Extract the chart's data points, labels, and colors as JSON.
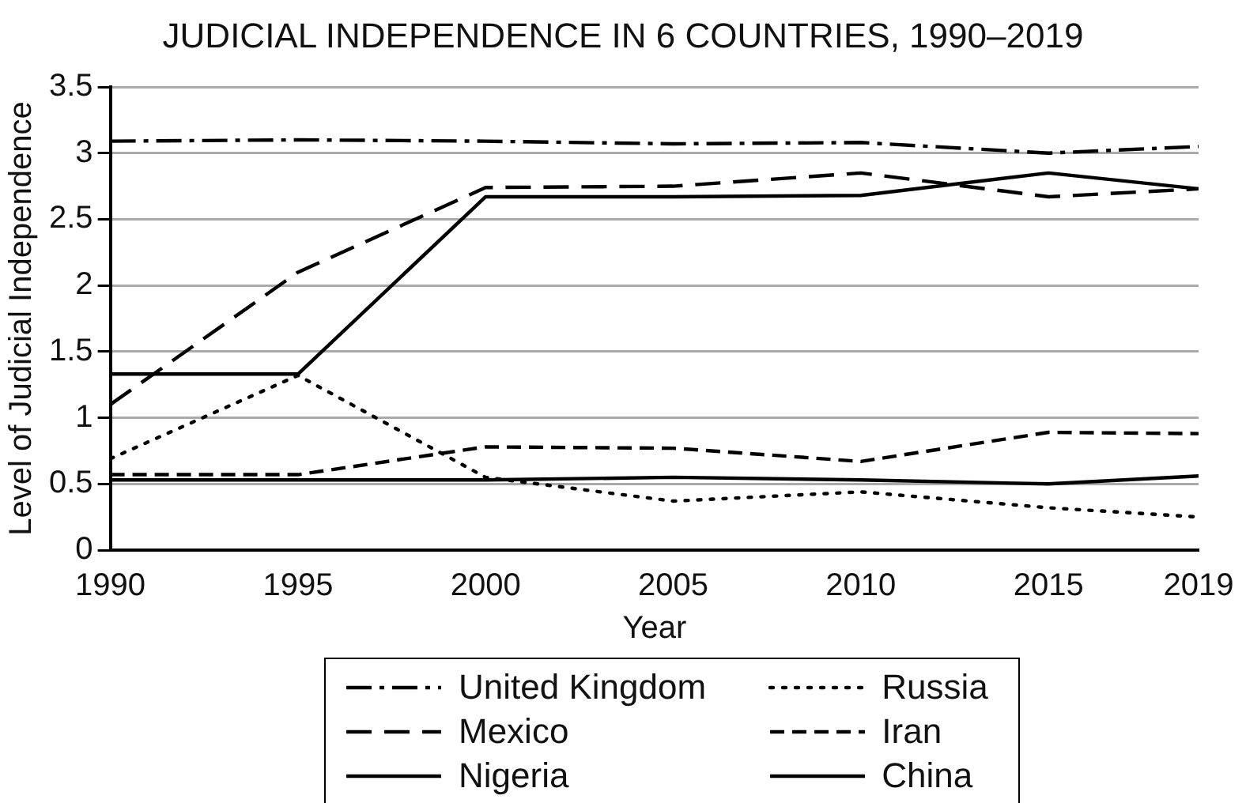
{
  "chart_data": {
    "type": "line",
    "title": "JUDICIAL INDEPENDENCE IN 6 COUNTRIES, 1990–2019",
    "xlabel": "Year",
    "ylabel": "Level of Judicial Independence",
    "x": [
      1990,
      1995,
      2000,
      2005,
      2010,
      2015,
      2019
    ],
    "xlim": [
      1990,
      2019
    ],
    "xticks": [
      1990,
      1995,
      2000,
      2005,
      2010,
      2015,
      2019
    ],
    "ylim": [
      0,
      3.5
    ],
    "yticks": [
      0,
      0.5,
      1,
      1.5,
      2,
      2.5,
      3,
      3.5
    ],
    "grid": "y",
    "legend": "bottom",
    "marker": "none",
    "series": [
      {
        "name": "United Kingdom",
        "color": "#000000",
        "line_style": "dashdot",
        "values": [
          3.09,
          3.1,
          3.09,
          3.07,
          3.08,
          3.0,
          3.05
        ]
      },
      {
        "name": "Mexico",
        "color": "#000000",
        "line_style": "longdash",
        "values": [
          1.1,
          2.1,
          2.74,
          2.75,
          2.85,
          2.67,
          2.73
        ]
      },
      {
        "name": "Nigeria",
        "color": "#000000",
        "line_style": "solid",
        "values": [
          1.33,
          1.33,
          2.67,
          2.67,
          2.68,
          2.85,
          2.73
        ]
      },
      {
        "name": "Russia",
        "color": "#000000",
        "line_style": "dotted",
        "values": [
          0.69,
          1.32,
          0.55,
          0.37,
          0.44,
          0.32,
          0.25
        ]
      },
      {
        "name": "Iran",
        "color": "#000000",
        "line_style": "dashed",
        "values": [
          0.57,
          0.57,
          0.78,
          0.77,
          0.67,
          0.89,
          0.88
        ]
      },
      {
        "name": "China",
        "color": "#000000",
        "line_style": "solid",
        "values": [
          0.53,
          0.53,
          0.53,
          0.55,
          0.53,
          0.5,
          0.56
        ]
      }
    ]
  }
}
